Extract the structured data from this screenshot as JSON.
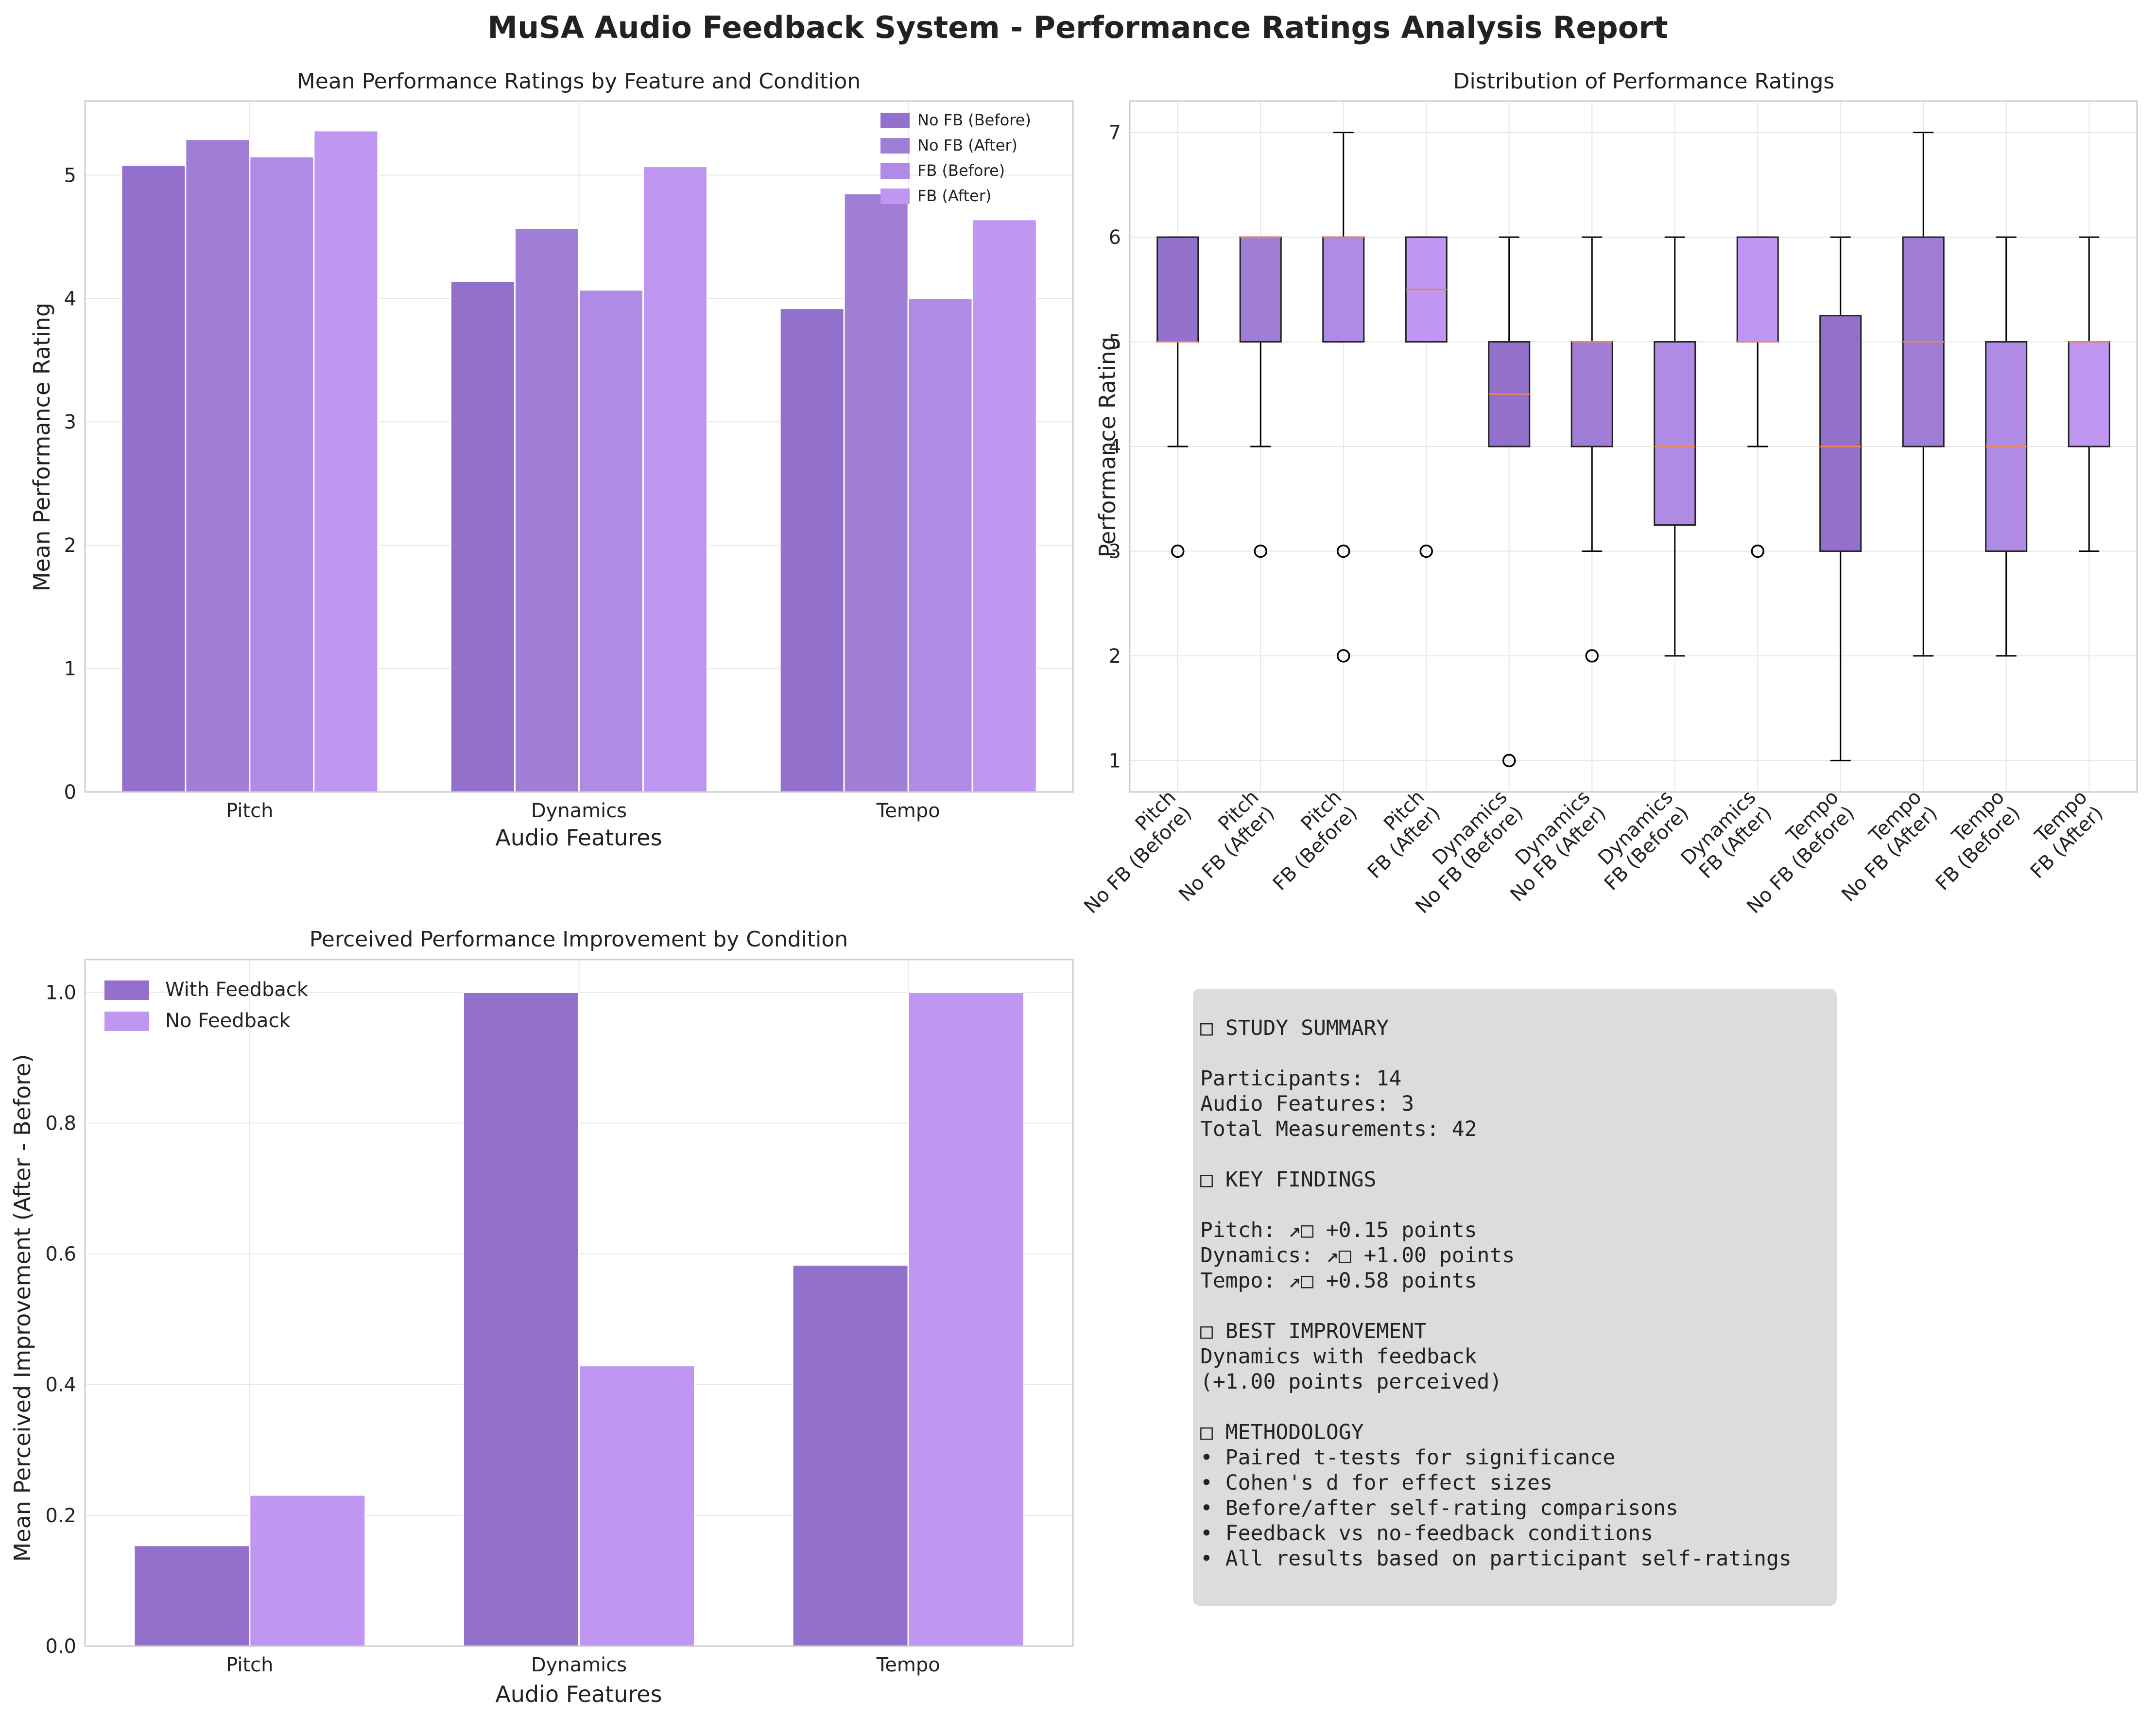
{
  "suptitle": "MuSA Audio Feedback System - Performance Ratings Analysis Report",
  "chart_data": [
    {
      "type": "bar",
      "title": "Mean Performance Ratings by Feature and Condition",
      "xlabel": "Audio Features",
      "ylabel": "Mean Performance Rating",
      "categories": [
        "Pitch",
        "Dynamics",
        "Tempo"
      ],
      "series": [
        {
          "name": "No FB (Before)",
          "values": [
            5.08,
            4.14,
            3.92
          ],
          "color": "#9370cb"
        },
        {
          "name": "No FB (After)",
          "values": [
            5.29,
            4.57,
            4.85
          ],
          "color": "#a07ed6"
        },
        {
          "name": "FB (Before)",
          "values": [
            5.15,
            4.07,
            4.0
          ],
          "color": "#af8be5"
        },
        {
          "name": "FB (After)",
          "values": [
            5.36,
            5.07,
            4.64
          ],
          "color": "#bf96f2"
        }
      ],
      "ylim": [
        0,
        5.6
      ],
      "yticks": [
        0,
        1,
        2,
        3,
        4,
        5
      ],
      "legend": "top-right",
      "grid": true
    },
    {
      "type": "box",
      "title": "Distribution of Performance Ratings",
      "ylabel": "Performance Rating",
      "ylim": [
        0.7,
        7.3
      ],
      "yticks": [
        1,
        2,
        3,
        4,
        5,
        6,
        7
      ],
      "grid": true,
      "boxes": [
        {
          "feature": "Pitch",
          "condition": "No FB (Before)",
          "q1": 5,
          "median": 5,
          "q3": 6,
          "whisker_low": 4,
          "whisker_high": 6,
          "outliers": [
            3
          ],
          "color": "#9370cb"
        },
        {
          "feature": "Pitch",
          "condition": "No FB (After)",
          "q1": 5,
          "median": 6,
          "q3": 6,
          "whisker_low": 4,
          "whisker_high": 6,
          "outliers": [
            3
          ],
          "color": "#a07ed6"
        },
        {
          "feature": "Pitch",
          "condition": "FB (Before)",
          "q1": 5,
          "median": 6,
          "q3": 6,
          "whisker_low": 5,
          "whisker_high": 7,
          "outliers": [
            3,
            2
          ],
          "color": "#af8be5"
        },
        {
          "feature": "Pitch",
          "condition": "FB (After)",
          "q1": 5,
          "median": 5.5,
          "q3": 6,
          "whisker_low": 5,
          "whisker_high": 6,
          "outliers": [
            3
          ],
          "color": "#bf96f2"
        },
        {
          "feature": "Dynamics",
          "condition": "No FB (Before)",
          "q1": 4,
          "median": 4.5,
          "q3": 5,
          "whisker_low": 4,
          "whisker_high": 6,
          "outliers": [
            1
          ],
          "color": "#9370cb"
        },
        {
          "feature": "Dynamics",
          "condition": "No FB (After)",
          "q1": 4,
          "median": 5,
          "q3": 5,
          "whisker_low": 3,
          "whisker_high": 6,
          "outliers": [
            2
          ],
          "color": "#a07ed6"
        },
        {
          "feature": "Dynamics",
          "condition": "FB (Before)",
          "q1": 3.25,
          "median": 4,
          "q3": 5,
          "whisker_low": 2,
          "whisker_high": 6,
          "outliers": [],
          "color": "#af8be5"
        },
        {
          "feature": "Dynamics",
          "condition": "FB (After)",
          "q1": 5,
          "median": 5,
          "q3": 6,
          "whisker_low": 4,
          "whisker_high": 6,
          "outliers": [
            3
          ],
          "color": "#bf96f2"
        },
        {
          "feature": "Tempo",
          "condition": "No FB (Before)",
          "q1": 3,
          "median": 4,
          "q3": 5.25,
          "whisker_low": 1,
          "whisker_high": 6,
          "outliers": [],
          "color": "#9370cb"
        },
        {
          "feature": "Tempo",
          "condition": "No FB (After)",
          "q1": 4,
          "median": 5,
          "q3": 6,
          "whisker_low": 2,
          "whisker_high": 7,
          "outliers": [],
          "color": "#a07ed6"
        },
        {
          "feature": "Tempo",
          "condition": "FB (Before)",
          "q1": 3,
          "median": 4,
          "q3": 5,
          "whisker_low": 2,
          "whisker_high": 6,
          "outliers": [],
          "color": "#af8be5"
        },
        {
          "feature": "Tempo",
          "condition": "FB (After)",
          "q1": 4,
          "median": 5,
          "q3": 5,
          "whisker_low": 3,
          "whisker_high": 6,
          "outliers": [],
          "color": "#bf96f2"
        }
      ]
    },
    {
      "type": "bar",
      "title": "Perceived Performance Improvement by Condition",
      "xlabel": "Audio Features",
      "ylabel": "Mean Perceived Improvement (After - Before)",
      "categories": [
        "Pitch",
        "Dynamics",
        "Tempo"
      ],
      "series": [
        {
          "name": "With Feedback",
          "values": [
            0.154,
            1.0,
            0.583
          ],
          "color": "#9370cb"
        },
        {
          "name": "No Feedback",
          "values": [
            0.231,
            0.429,
            1.0
          ],
          "color": "#bf96f2"
        }
      ],
      "ylim": [
        0,
        1.05
      ],
      "yticks": [
        "0.0",
        "0.2",
        "0.4",
        "0.6",
        "0.8",
        "1.0"
      ],
      "legend": "top-left",
      "grid": true
    }
  ],
  "summary": {
    "lines": [
      "□ STUDY SUMMARY",
      "",
      "Participants: 14",
      "Audio Features: 3",
      "Total Measurements: 42",
      "",
      "□ KEY FINDINGS",
      "",
      "Pitch: ↗□ +0.15 points",
      "Dynamics: ↗□ +1.00 points",
      "Tempo: ↗□ +0.58 points",
      "",
      "□ BEST IMPROVEMENT",
      "Dynamics with feedback",
      "(+1.00 points perceived)",
      "",
      "□ METHODOLOGY",
      "• Paired t-tests for significance",
      "• Cohen's d for effect sizes",
      "• Before/after self-rating comparisons",
      "• Feedback vs no-feedback conditions",
      "• All results based on participant self-ratings"
    ]
  }
}
